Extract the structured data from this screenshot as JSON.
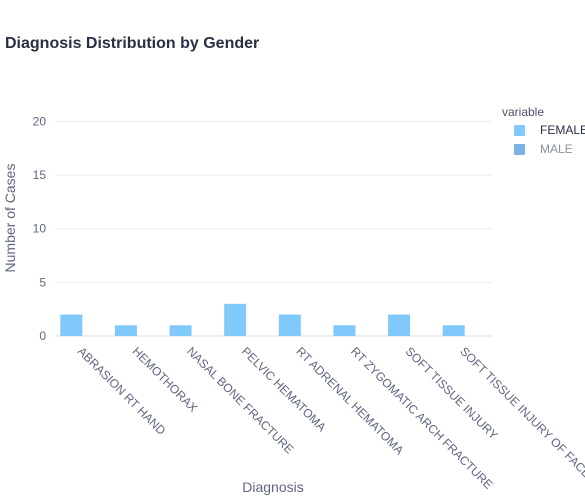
{
  "chart_data": {
    "type": "bar",
    "title": "Diagnosis Distribution by Gender",
    "xlabel": "Diagnosis",
    "ylabel": "Number of Cases",
    "ylim": [
      0,
      22
    ],
    "yticks": [
      0,
      5,
      10,
      15,
      20
    ],
    "grid": true,
    "categories": [
      "ABRASION RT HAND",
      "HEMOTHORAX",
      "NASAL BONE FRACTURE",
      "PELVIC HEMATOMA",
      "RT ADRENAL HEMATOMA",
      "RT ZYGOMATIC ARCH FRACTURE",
      "SOFT TISSUE INJURY",
      "SOFT TISSUE INJURY OF FACE"
    ],
    "series": [
      {
        "name": "FEMALE",
        "color": "#80c9fb",
        "values": [
          2,
          1,
          1,
          3,
          2,
          1,
          2,
          1
        ],
        "active": true
      },
      {
        "name": "MALE",
        "color": "#7bb2e6",
        "values": [
          0,
          0,
          0,
          0,
          0,
          0,
          0,
          0
        ],
        "active": false
      }
    ],
    "legend": {
      "title": "variable",
      "placement": "right"
    }
  }
}
